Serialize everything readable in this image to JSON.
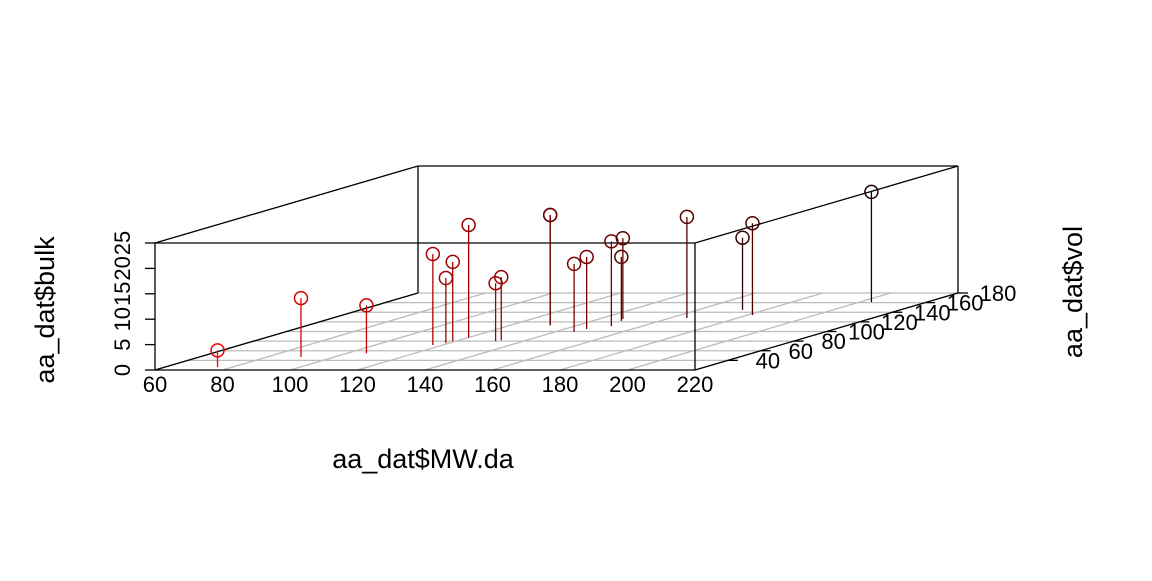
{
  "chart_data": {
    "type": "scatter3d",
    "x_label": "aa_dat$MW.da",
    "y_label": "aa_dat$vol",
    "z_label": "aa_dat$bulk",
    "x": [
      75.6,
      90.1,
      105.6,
      117,
      118.9,
      119,
      120.3,
      131.7,
      132.4,
      131.8,
      131.8,
      145.7,
      146.5,
      150.9,
      147,
      148.5,
      165,
      173.2,
      181.5,
      203.6
    ],
    "y": [
      26,
      47,
      55,
      72,
      76,
      80,
      87,
      80,
      82,
      113,
      113,
      99,
      105,
      111,
      126,
      122,
      128,
      145,
      134,
      161
    ],
    "z": [
      3.3,
      11.6,
      9.4,
      17.9,
      12.8,
      15.6,
      22.2,
      11.4,
      12.4,
      21.7,
      21.7,
      13.4,
      14.2,
      16.7,
      15.9,
      12.6,
      19.9,
      14.2,
      18.1,
      21.7
    ],
    "color_low": "#ff0000",
    "color_high": "#000000",
    "xlim": [
      60,
      220
    ],
    "xticks": [
      60,
      80,
      100,
      120,
      140,
      160,
      180,
      200,
      220
    ],
    "ylim": [
      20,
      180
    ],
    "yticks": [
      40,
      60,
      80,
      100,
      120,
      140,
      160,
      180
    ],
    "zlim": [
      0,
      25
    ],
    "zticks": [
      0,
      5,
      10,
      15,
      20,
      25
    ],
    "grid": true
  }
}
